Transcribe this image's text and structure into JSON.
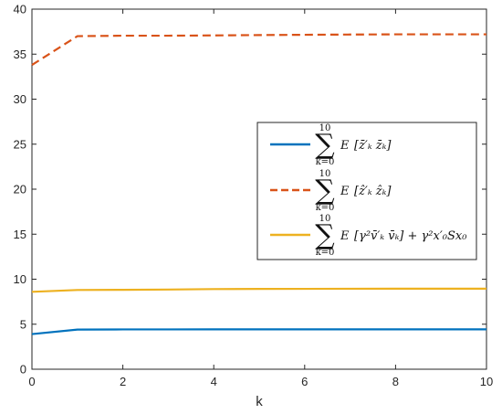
{
  "chart_data": {
    "type": "line",
    "xlabel": "k",
    "ylabel": "",
    "xlim": [
      0,
      10
    ],
    "ylim": [
      0,
      40
    ],
    "xticks": [
      "0",
      "2",
      "4",
      "6",
      "8",
      "10"
    ],
    "yticks": [
      "0",
      "5",
      "10",
      "15",
      "20",
      "25",
      "30",
      "35",
      "40"
    ],
    "x": [
      0,
      1,
      2,
      3,
      4,
      5,
      6,
      7,
      8,
      9,
      10
    ],
    "grid": false,
    "legend_position": "right",
    "series": [
      {
        "name": "Σ_{k=0}^{10} E[z̄'_k z̄_k]",
        "values": [
          3.9,
          4.4,
          4.42,
          4.42,
          4.43,
          4.43,
          4.43,
          4.43,
          4.43,
          4.43,
          4.43
        ],
        "color": "#0072BD",
        "dash": "solid"
      },
      {
        "name": "Σ_{k=0}^{10} E[ẑ'_k ẑ_k]",
        "values": [
          33.8,
          37.0,
          37.05,
          37.05,
          37.08,
          37.12,
          37.15,
          37.18,
          37.2,
          37.2,
          37.2
        ],
        "color": "#D95319",
        "dash": "dashed"
      },
      {
        "name": "Σ_{k=0}^{10} E[γ² v̄'_k v̄_k] + γ² x'_0 S x_0",
        "values": [
          8.6,
          8.8,
          8.82,
          8.85,
          8.9,
          8.92,
          8.93,
          8.94,
          8.95,
          8.95,
          8.95
        ],
        "color": "#EDB120",
        "dash": "solid"
      }
    ],
    "legend": [
      {
        "sum_upper": "10",
        "sum_lower": "k=0",
        "E": "E",
        "body": "[z̄′ₖ z̄ₖ]"
      },
      {
        "sum_upper": "10",
        "sum_lower": "k=0",
        "E": "E",
        "body": "[ẑ′ₖ ẑₖ]"
      },
      {
        "sum_upper": "10",
        "sum_lower": "k=0",
        "E": "E",
        "body": "[γ²v̄′ₖ v̄ₖ] + γ²x′₀Sx₀"
      }
    ]
  }
}
